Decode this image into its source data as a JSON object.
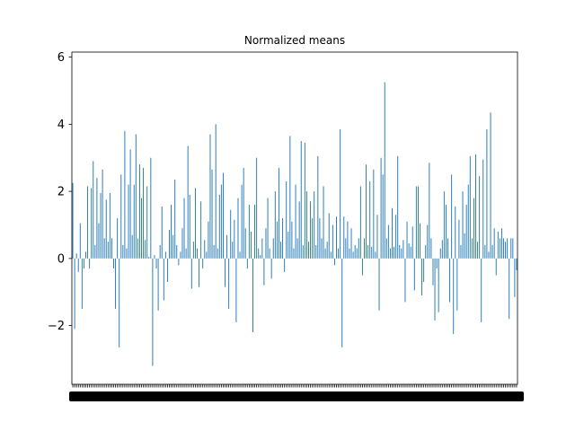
{
  "chart_data": {
    "type": "bar",
    "title": "Normalized means",
    "xlabel": "",
    "ylabel": "",
    "ylim": [
      -3.75,
      6.15
    ],
    "yticks": [
      -2,
      0,
      2,
      4,
      6
    ],
    "grid": false,
    "legend": "none",
    "bar_color": "#1f77b4",
    "x_tick_labels": "unreadable (overlapping category labels)",
    "values": [
      2.25,
      -2.1,
      0.15,
      -0.4,
      1.05,
      -1.5,
      -0.3,
      0.2,
      2.15,
      -0.3,
      2.1,
      2.9,
      0.4,
      2.4,
      1.05,
      1.95,
      2.65,
      0.6,
      1.75,
      0.5,
      1.95,
      0.6,
      -0.3,
      -1.5,
      1.2,
      -2.65,
      2.5,
      0.4,
      3.8,
      0.3,
      2.2,
      3.25,
      0.7,
      2.2,
      3.7,
      0.6,
      2.8,
      1.8,
      2.7,
      0.55,
      2.15,
      0.05,
      3.0,
      -3.2,
      0.1,
      -0.3,
      -1.55,
      0.4,
      1.55,
      -1.25,
      0.2,
      -0.7,
      0.85,
      1.6,
      0.7,
      2.35,
      0.4,
      -0.2,
      0.2,
      0.9,
      1.8,
      0.3,
      3.35,
      1.9,
      -0.9,
      0.5,
      2.1,
      0.3,
      -0.85,
      1.7,
      -0.3,
      0.55,
      0.2,
      1.1,
      3.7,
      2.65,
      0.4,
      4.0,
      0.3,
      1.9,
      2.2,
      2.55,
      -0.85,
      0.7,
      -1.5,
      1.45,
      0.5,
      1.15,
      -1.9,
      1.8,
      0.2,
      2.2,
      2.7,
      0.9,
      -0.3,
      1.6,
      0.8,
      -2.2,
      1.6,
      3.0,
      0.3,
      0.1,
      0.6,
      -0.8,
      0.9,
      1.8,
      0.3,
      -0.6,
      0.6,
      2.0,
      1.1,
      2.7,
      0.5,
      1.2,
      -0.4,
      2.3,
      0.8,
      3.65,
      1.1,
      0.3,
      2.2,
      0.6,
      1.7,
      3.5,
      0.4,
      3.45,
      2.0,
      0.5,
      1.7,
      1.2,
      2.0,
      0.4,
      3.05,
      1.2,
      0.6,
      2.15,
      0.3,
      0.5,
      1.35,
      0.2,
      1.0,
      -0.2,
      1.25,
      0.3,
      3.85,
      -2.65,
      1.25,
      0.6,
      1.1,
      0.3,
      0.9,
      0.2,
      0.4,
      0.3,
      0.6,
      2.15,
      -0.5,
      0.6,
      2.8,
      0.4,
      2.3,
      0.35,
      2.65,
      0.2,
      1.3,
      -1.55,
      3.0,
      2.5,
      5.25,
      0.6,
      1.0,
      0.3,
      1.5,
      0.35,
      1.3,
      3.05,
      0.4,
      0.3,
      0.55,
      -1.3,
      1.1,
      0.45,
      0.35,
      0.95,
      -0.95,
      2.15,
      2.15,
      1.05,
      -1.1,
      -0.7,
      0.4,
      1.0,
      2.85,
      0.6,
      -0.8,
      -1.85,
      -0.3,
      -1.6,
      0.3,
      0.55,
      2.0,
      1.6,
      0.6,
      -1.3,
      2.5,
      -2.25,
      1.55,
      -1.55,
      1.15,
      0.4,
      2.0,
      0.75,
      1.6,
      2.2,
      3.05,
      0.6,
      1.8,
      3.1,
      0.5,
      2.45,
      -1.9,
      2.95,
      0.4,
      3.85,
      0.2,
      4.35,
      0.4,
      0.9,
      -0.5,
      0.8,
      0.6,
      0.9,
      0.6,
      0.5,
      0.6,
      -1.8,
      0.6,
      0.6,
      -1.15,
      -0.35
    ]
  }
}
